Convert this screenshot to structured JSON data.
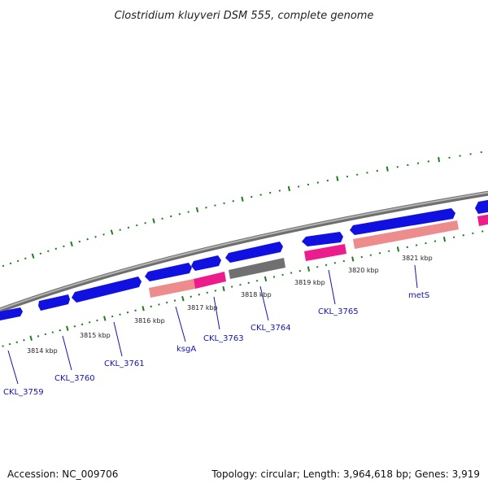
{
  "title": "Clostridium kluyveri DSM 555, complete genome",
  "footer": {
    "accession": "Accession: NC_009706",
    "summary": "Topology: circular; Length: 3,964,618 bp; Genes: 3,919"
  },
  "colors": {
    "backbone": "#8c8c8c",
    "cds": "#1010e0",
    "rna_pink": "#ec1c8c",
    "rna_salmon": "#ec8c8c",
    "pseudo_grey": "#707070",
    "tick_green": "#1e7d1e",
    "label_blue": "#1414b4"
  },
  "kbp_labels": [
    "3814 kbp",
    "3815 kbp",
    "3816 kbp",
    "3817 kbp",
    "3818 kbp",
    "3819 kbp",
    "3820 kbp",
    "3821 kbp"
  ],
  "genes": [
    "CKL_3759",
    "CKL_3760",
    "CKL_3761",
    "ksgA",
    "CKL_3763",
    "CKL_3764",
    "CKL_3765",
    "metS"
  ]
}
